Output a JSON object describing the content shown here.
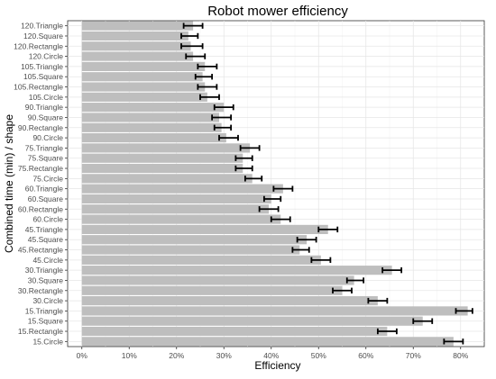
{
  "chart_data": {
    "type": "bar",
    "orientation": "horizontal",
    "title": "Robot mower efficiency",
    "xlabel": "Efficiency",
    "ylabel": "Combined time (min) / shape",
    "xlim": [
      -0.03,
      0.85
    ],
    "xticks": [
      0,
      0.1,
      0.2,
      0.3,
      0.4,
      0.5,
      0.6,
      0.7,
      0.8
    ],
    "xtick_labels": [
      "0%",
      "10%",
      "20%",
      "30%",
      "40%",
      "50%",
      "60%",
      "70%",
      "80%"
    ],
    "grid": true,
    "bar_color": "#bebebe",
    "errorbar_color": "#000000",
    "categories": [
      "120.Triangle",
      "120.Square",
      "120.Rectangle",
      "120.Circle",
      "105.Triangle",
      "105.Square",
      "105.Rectangle",
      "105.Circle",
      "90.Triangle",
      "90.Square",
      "90.Rectangle",
      "90.Circle",
      "75.Triangle",
      "75.Square",
      "75.Rectangle",
      "75.Circle",
      "60.Triangle",
      "60.Square",
      "60.Rectangle",
      "60.Circle",
      "45.Triangle",
      "45.Square",
      "45.Rectangle",
      "45.Circle",
      "30.Triangle",
      "30.Square",
      "30.Rectangle",
      "30.Circle",
      "15.Triangle",
      "15.Square",
      "15.Rectangle",
      "15.Circle"
    ],
    "values": [
      0.235,
      0.225,
      0.23,
      0.235,
      0.26,
      0.255,
      0.26,
      0.265,
      0.3,
      0.29,
      0.295,
      0.305,
      0.355,
      0.34,
      0.34,
      0.36,
      0.425,
      0.4,
      0.395,
      0.42,
      0.52,
      0.475,
      0.46,
      0.505,
      0.655,
      0.575,
      0.55,
      0.625,
      0.815,
      0.72,
      0.645,
      0.785
    ],
    "error_low": [
      0.215,
      0.21,
      0.21,
      0.22,
      0.245,
      0.24,
      0.245,
      0.25,
      0.28,
      0.275,
      0.28,
      0.29,
      0.335,
      0.325,
      0.325,
      0.345,
      0.405,
      0.385,
      0.375,
      0.4,
      0.5,
      0.455,
      0.445,
      0.485,
      0.635,
      0.56,
      0.53,
      0.605,
      0.79,
      0.7,
      0.625,
      0.765
    ],
    "error_high": [
      0.255,
      0.245,
      0.255,
      0.26,
      0.285,
      0.275,
      0.285,
      0.29,
      0.32,
      0.315,
      0.315,
      0.33,
      0.375,
      0.36,
      0.36,
      0.38,
      0.445,
      0.42,
      0.415,
      0.44,
      0.54,
      0.495,
      0.48,
      0.525,
      0.675,
      0.595,
      0.57,
      0.645,
      0.825,
      0.74,
      0.665,
      0.805
    ]
  }
}
